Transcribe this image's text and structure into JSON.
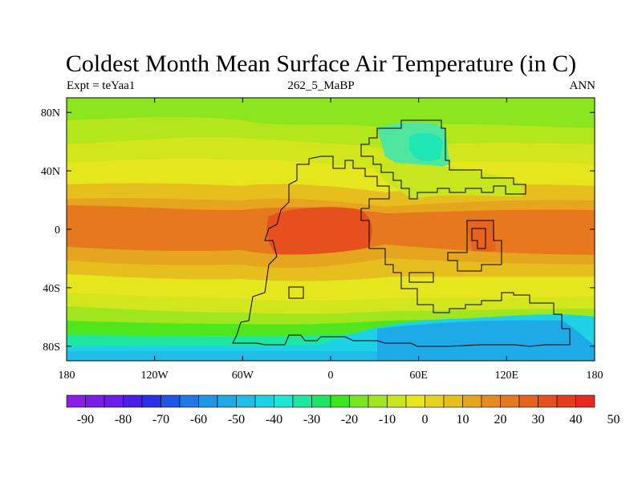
{
  "title": "Coldest Month Mean Surface Air Temperature (in C)",
  "subtitle_left": "Expt = teYaa1",
  "subtitle_center": "262_5_MaBP",
  "subtitle_right": "ANN",
  "axes": {
    "y_ticks": [
      "80N",
      "40N",
      "0",
      "40S",
      "80S"
    ],
    "y_tick_lats": [
      80,
      40,
      0,
      -40,
      -80
    ],
    "x_ticks": [
      "180",
      "120W",
      "60W",
      "0",
      "60E",
      "120E",
      "180"
    ],
    "x_tick_lons": [
      -180,
      -120,
      -60,
      0,
      60,
      120,
      180
    ],
    "lon_range": [
      -180,
      180
    ],
    "lat_range": [
      -90,
      90
    ]
  },
  "colorbar": {
    "labels": [
      "-90",
      "-80",
      "-70",
      "-60",
      "-50",
      "-40",
      "-30",
      "-20",
      "-10",
      "0",
      "10",
      "20",
      "30",
      "40",
      "50"
    ],
    "colors": [
      "#8a1ee6",
      "#7a1ee6",
      "#6a1ee6",
      "#4b1ee6",
      "#2a2ee6",
      "#1e55e6",
      "#1e78e6",
      "#1e96e6",
      "#1eaae6",
      "#1ebee6",
      "#1ed2e6",
      "#1ee6d2",
      "#1ee6a0",
      "#1ee664",
      "#3ce61e",
      "#78e61e",
      "#a0e61e",
      "#c8e61e",
      "#e6e61e",
      "#e6d21e",
      "#e6be1e",
      "#e6a51e",
      "#e68c1e",
      "#e6781e",
      "#e6641e",
      "#e6501e",
      "#e63c1e",
      "#e6281e"
    ]
  }
}
